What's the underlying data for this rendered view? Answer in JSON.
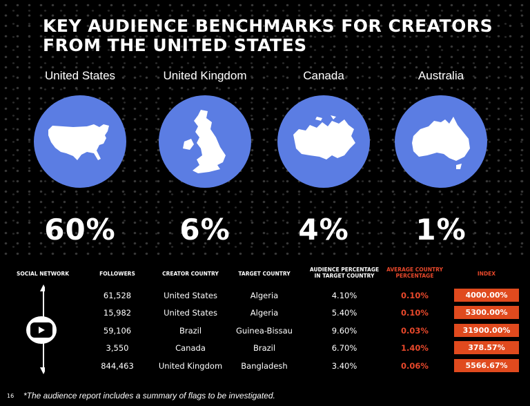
{
  "title": "KEY AUDIENCE BENCHMARKS FOR CREATORS FROM THE UNITED STATES",
  "countries": [
    {
      "name": "United States",
      "percent": "60%"
    },
    {
      "name": "United Kingdom",
      "percent": "6%"
    },
    {
      "name": "Canada",
      "percent": "4%"
    },
    {
      "name": "Australia",
      "percent": "1%"
    }
  ],
  "colors": {
    "circle": "#5b7de3",
    "accent": "#e8482b",
    "index_bg": "#e04a1e",
    "background": "#000000"
  },
  "table": {
    "headers": {
      "social_network": "SOCIAL NETWORK",
      "followers": "FOLLOWERS",
      "creator_country": "CREATOR COUNTRY",
      "target_country": "TARGET COUNTRY",
      "audience_pct": "AUDIENCE PERCENTAGE IN TARGET COUNTRY",
      "avg_country_pct": "AVERAGE COUNTRY PERCENTAGE",
      "index": "INDEX"
    },
    "social_icon": "youtube-icon",
    "rows": [
      {
        "followers": "61,528",
        "creator": "United States",
        "target": "Algeria",
        "audience": "4.10%",
        "average": "0.10%",
        "index": "4000.00%"
      },
      {
        "followers": "15,982",
        "creator": "United States",
        "target": "Algeria",
        "audience": "5.40%",
        "average": "0.10%",
        "index": "5300.00%"
      },
      {
        "followers": "59,106",
        "creator": "Brazil",
        "target": "Guinea-Bissau",
        "audience": "9.60%",
        "average": "0.03%",
        "index": "31900.00%"
      },
      {
        "followers": "3,550",
        "creator": "Canada",
        "target": "Brazil",
        "audience": "6.70%",
        "average": "1.40%",
        "index": "378.57%"
      },
      {
        "followers": "844,463",
        "creator": "United Kingdom",
        "target": "Bangladesh",
        "audience": "3.40%",
        "average": "0.06%",
        "index": "5566.67%"
      }
    ]
  },
  "footnote": {
    "page": "16",
    "text": "*The audience report includes a summary of flags to be investigated."
  }
}
